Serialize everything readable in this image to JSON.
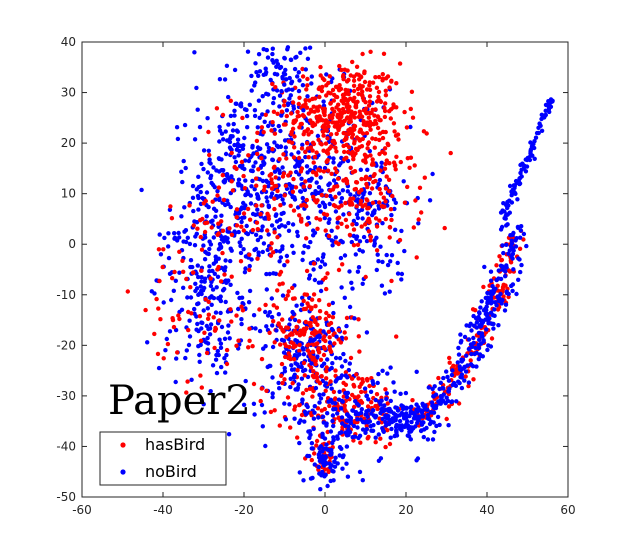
{
  "chart_data": {
    "type": "scatter",
    "title": "",
    "xlabel": "",
    "ylabel": "",
    "xlim": [
      -60,
      60
    ],
    "ylim": [
      -50,
      40
    ],
    "xticks": [
      -60,
      -40,
      -20,
      0,
      20,
      40,
      60
    ],
    "yticks": [
      -50,
      -40,
      -30,
      -20,
      -10,
      0,
      10,
      20,
      30,
      40
    ],
    "grid": false,
    "box": true,
    "annotation": "Paper2",
    "legend": {
      "position": "bottom-left"
    },
    "series": [
      {
        "name": "hasBird",
        "color": "#ff0000",
        "clusters": [
          {
            "cx": 5,
            "cy": 26,
            "sx": 7,
            "sy": 5,
            "n": 380
          },
          {
            "cx": 10,
            "cy": 10,
            "sx": 7,
            "sy": 6,
            "n": 180
          },
          {
            "cx": -12,
            "cy": 12,
            "sx": 7,
            "sy": 9,
            "n": 140
          },
          {
            "cx": -5,
            "cy": -18,
            "sx": 6,
            "sy": 5,
            "n": 170
          },
          {
            "cx": 6,
            "cy": -32,
            "sx": 7,
            "sy": 4,
            "n": 170
          },
          {
            "cx": 0,
            "cy": -42,
            "sx": 2,
            "sy": 2,
            "n": 35
          },
          {
            "cx": -30,
            "cy": -8,
            "sx": 7,
            "sy": 10,
            "n": 90
          }
        ],
        "arc": {
          "tmin": 0.15,
          "tmax": 0.95,
          "spread": 1.5,
          "n": 170
        }
      },
      {
        "name": "noBird",
        "color": "#0000ff",
        "clusters": [
          {
            "cx": -28,
            "cy": -5,
            "sx": 6,
            "sy": 11,
            "n": 330
          },
          {
            "cx": -18,
            "cy": 15,
            "sx": 7,
            "sy": 8,
            "n": 240
          },
          {
            "cx": -3,
            "cy": 15,
            "sx": 8,
            "sy": 11,
            "n": 280
          },
          {
            "cx": 12,
            "cy": 5,
            "sx": 5,
            "sy": 7,
            "n": 120
          },
          {
            "cx": -5,
            "cy": -22,
            "sx": 6,
            "sy": 8,
            "n": 230
          },
          {
            "cx": 10,
            "cy": -34,
            "sx": 8,
            "sy": 4,
            "n": 200
          },
          {
            "cx": 0,
            "cy": -43,
            "sx": 2,
            "sy": 2.5,
            "n": 70
          },
          {
            "cx": -11,
            "cy": 34,
            "sx": 4,
            "sy": 3,
            "n": 60
          }
        ],
        "arc": {
          "tmin": 0.0,
          "tmax": 1.0,
          "spread": 1.7,
          "n": 330
        },
        "tail": {
          "from": [
            44,
            5
          ],
          "to": [
            56,
            29
          ],
          "n": 90
        }
      }
    ],
    "arc_path": [
      [
        14,
        -34
      ],
      [
        22,
        -36
      ],
      [
        28,
        -31
      ],
      [
        34,
        -24
      ],
      [
        38,
        -18
      ],
      [
        42,
        -11
      ],
      [
        45,
        -4
      ],
      [
        47,
        4
      ]
    ]
  }
}
